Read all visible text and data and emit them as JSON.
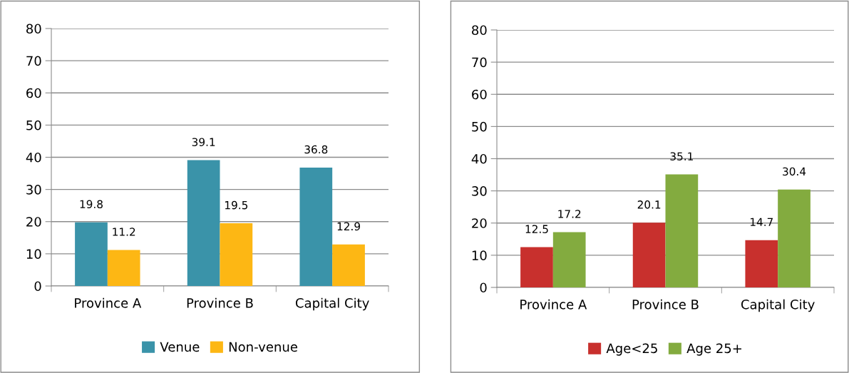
{
  "chart_data": [
    {
      "type": "bar",
      "categories": [
        "Province A",
        "Province B",
        "Capital City"
      ],
      "series": [
        {
          "name": "Venue",
          "color": "#3a93a9",
          "values": [
            19.8,
            39.1,
            36.8
          ]
        },
        {
          "name": "Non-venue",
          "color": "#fdb714",
          "values": [
            11.2,
            19.5,
            12.9
          ]
        }
      ],
      "ylim": [
        0,
        80
      ],
      "yticks": [
        0,
        10,
        20,
        30,
        40,
        50,
        60,
        70,
        80
      ],
      "grid": "y",
      "legend": "bottom",
      "data_labels": true
    },
    {
      "type": "bar",
      "categories": [
        "Province A",
        "Province B",
        "Capital City"
      ],
      "series": [
        {
          "name": "Age<25",
          "color": "#c8302d",
          "values": [
            12.5,
            20.1,
            14.7
          ]
        },
        {
          "name": "Age 25+",
          "color": "#83ab3f",
          "values": [
            17.2,
            35.1,
            30.4
          ]
        }
      ],
      "ylim": [
        0,
        80
      ],
      "yticks": [
        0,
        10,
        20,
        30,
        40,
        50,
        60,
        70,
        80
      ],
      "grid": "y",
      "legend": "bottom",
      "data_labels": true
    }
  ]
}
